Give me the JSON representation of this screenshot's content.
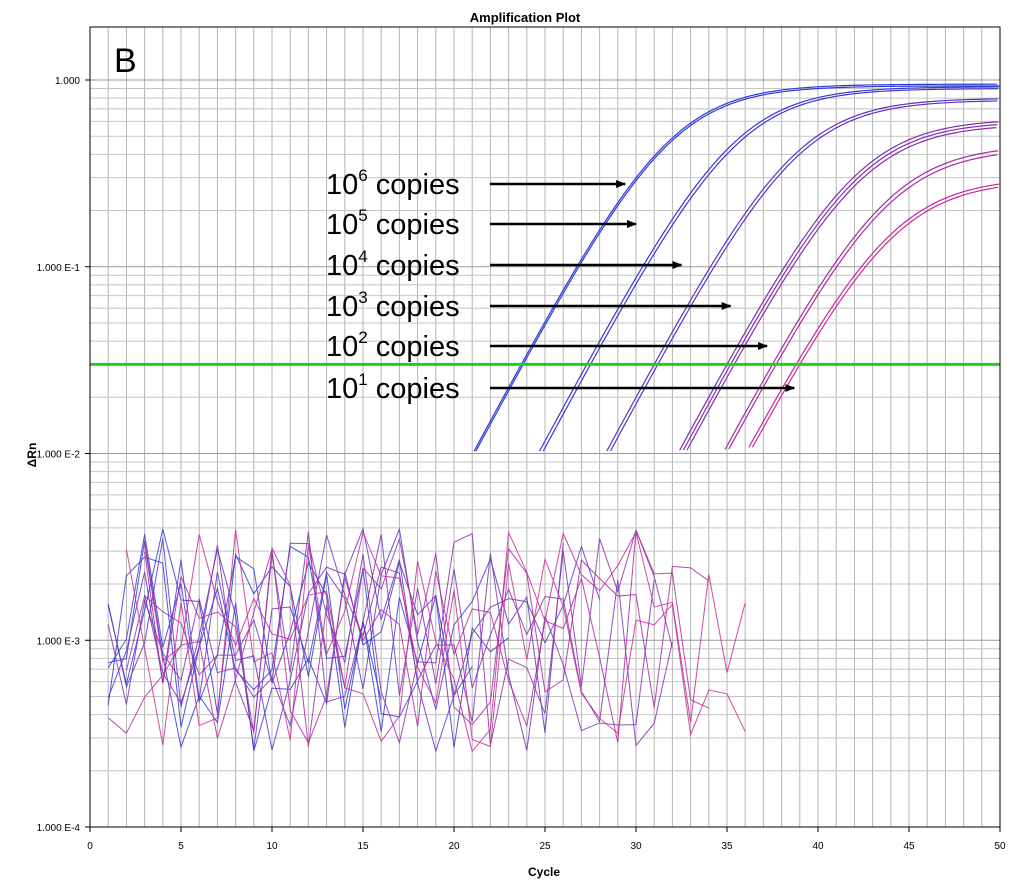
{
  "chart_data": {
    "type": "line",
    "title": "Amplification Plot",
    "panel_label": "B",
    "xlabel": "Cycle",
    "ylabel": "ΔRn",
    "xlim": [
      0,
      50
    ],
    "ylim": [
      0.0001,
      1
    ],
    "y_scale": "log",
    "grid": true,
    "x_ticks": [
      0,
      5,
      10,
      15,
      20,
      25,
      30,
      35,
      40,
      45,
      50
    ],
    "x_tick_labels": [
      "0",
      "5",
      "10",
      "15",
      "20",
      "25",
      "30",
      "35",
      "40",
      "45",
      "50"
    ],
    "y_ticks": [
      1,
      0.1,
      0.01,
      0.001,
      0.0001
    ],
    "y_tick_labels": [
      "1.000",
      "1.000 E-1",
      "1.000 E-2",
      "1.000 E-3",
      "1.000 E-4"
    ],
    "threshold": {
      "value": 0.03,
      "color": "#22cc22"
    },
    "colors": {
      "high_copy": "#2233dd",
      "low_copy": "#cc2299"
    },
    "series": [
      {
        "ct": 23.7,
        "plateau": 0.95,
        "color": "#2a3ad8"
      },
      {
        "ct": 23.8,
        "plateau": 0.93,
        "color": "#2e3ad6"
      },
      {
        "ct": 27.3,
        "plateau": 0.92,
        "color": "#3a37d2"
      },
      {
        "ct": 27.5,
        "plateau": 0.9,
        "color": "#4036cc"
      },
      {
        "ct": 31.0,
        "plateau": 0.8,
        "color": "#5a33c2"
      },
      {
        "ct": 31.2,
        "plateau": 0.78,
        "color": "#6032be"
      },
      {
        "ct": 35.0,
        "plateau": 0.62,
        "color": "#7a2fb4"
      },
      {
        "ct": 35.2,
        "plateau": 0.6,
        "color": "#842eae"
      },
      {
        "ct": 35.4,
        "plateau": 0.58,
        "color": "#8c2daa"
      },
      {
        "ct": 37.5,
        "plateau": 0.45,
        "color": "#a42aa4"
      },
      {
        "ct": 37.7,
        "plateau": 0.43,
        "color": "#ae29a0"
      },
      {
        "ct": 38.8,
        "plateau": 0.3,
        "color": "#c4289c"
      },
      {
        "ct": 39.0,
        "plateau": 0.29,
        "color": "#cc2a98"
      }
    ],
    "annotations": [
      {
        "base": "10",
        "exp": "6",
        "text": "copies",
        "target_x": 29.4,
        "target_y": 0.28
      },
      {
        "base": "10",
        "exp": "5",
        "text": "copies",
        "target_x": 30.0,
        "target_y": 0.175
      },
      {
        "base": "10",
        "exp": "4",
        "text": "copies",
        "target_x": 32.5,
        "target_y": 0.088
      },
      {
        "base": "10",
        "exp": "3",
        "text": "copies",
        "target_x": 35.2,
        "target_y": 0.056
      },
      {
        "base": "10",
        "exp": "2",
        "text": "copies",
        "target_x": 37.2,
        "target_y": 0.034
      },
      {
        "base": "10",
        "exp": "1",
        "text": "copies",
        "target_x": 38.7,
        "target_y": 0.022
      }
    ]
  }
}
